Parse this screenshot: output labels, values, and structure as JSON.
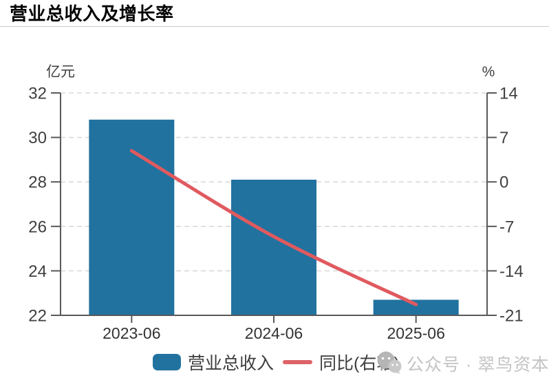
{
  "header": {
    "title": "营业总收入及增长率"
  },
  "legend": {
    "items": [
      {
        "label": "营业总收入",
        "type": "bar",
        "color": "#21729F"
      },
      {
        "label": "同比(右轴)",
        "type": "line",
        "color": "#DD6368"
      }
    ]
  },
  "watermark": {
    "icon": "wechat-icon",
    "text": "公众号 · 翠鸟资本"
  },
  "chart_data": {
    "type": "bar",
    "title": "营业总收入及增长率",
    "categories": [
      "2023-06",
      "2024-06",
      "2025-06"
    ],
    "series": [
      {
        "name": "营业总收入",
        "type": "bar",
        "axis": "left",
        "values": [
          30.8,
          28.1,
          22.7
        ],
        "color": "#21729F"
      },
      {
        "name": "同比(右轴)",
        "type": "line",
        "axis": "right",
        "values": [
          4.9,
          -8.6,
          -19.3
        ],
        "color": "#E05A5F"
      }
    ],
    "left_axis": {
      "unit": "亿元",
      "min": 22,
      "max": 32,
      "step": 2,
      "ticks": [
        32,
        30,
        28,
        26,
        24,
        22
      ]
    },
    "right_axis": {
      "unit": "%",
      "min": -21,
      "max": 14,
      "step": 7,
      "ticks": [
        14,
        7,
        0,
        -7,
        -14,
        -21
      ]
    },
    "grid": "horizontal-dashed",
    "legend_position": "bottom",
    "colors": {
      "axis_line": "#595959",
      "tick_label": "#3f3f3f",
      "grid_line": "#d9d9d9",
      "x_label": "#333333"
    }
  }
}
